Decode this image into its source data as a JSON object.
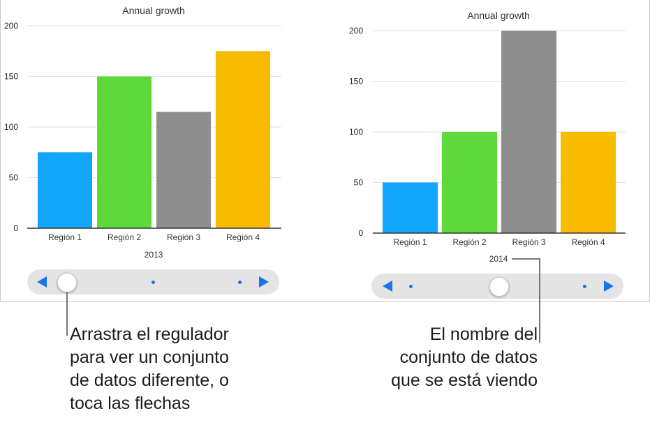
{
  "charts": [
    {
      "chart_data": {
        "type": "bar",
        "title": "Annual growth",
        "categories": [
          "Región 1",
          "Región 2",
          "Región 3",
          "Región 4"
        ],
        "values": [
          75,
          150,
          115,
          175
        ],
        "ylim": [
          0,
          200
        ],
        "yticks": [
          0,
          50,
          100,
          150,
          200
        ],
        "dataset_label": "2013",
        "colors": [
          "#11a6fb",
          "#5fd939",
          "#8e8e8e",
          "#f8bb00"
        ],
        "grid": true
      },
      "slider": {
        "dots": 3,
        "position_index": 0
      }
    },
    {
      "chart_data": {
        "type": "bar",
        "title": "Annual growth",
        "categories": [
          "Región 1",
          "Región 2",
          "Región 3",
          "Región 4"
        ],
        "values": [
          50,
          100,
          200,
          100
        ],
        "ylim": [
          0,
          200
        ],
        "yticks": [
          0,
          50,
          100,
          150,
          200
        ],
        "dataset_label": "2014",
        "colors": [
          "#11a6fb",
          "#5fd939",
          "#8e8e8e",
          "#f8bb00"
        ],
        "grid": true
      },
      "slider": {
        "dots": 3,
        "position_index": 1
      }
    }
  ],
  "captions": {
    "left": "Arrastra el regulador\npara ver un conjunto\nde datos diferente, o\ntoca las flechas",
    "right": "El nombre del\nconjunto de datos\nque se está viendo"
  },
  "accent_color": "#1a73e8"
}
